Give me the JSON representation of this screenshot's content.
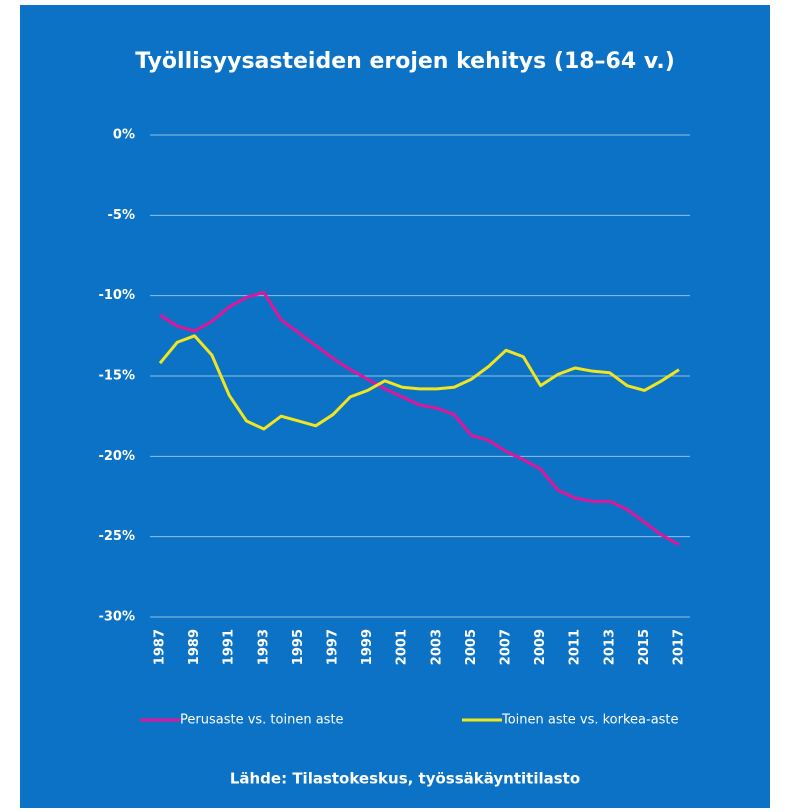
{
  "chart_data": {
    "type": "line",
    "title": "Työllisyysasteiden erojen kehitys (18–64 v.)",
    "source": "Lähde: Tilastokeskus, työssäkäyntitilasto",
    "x": [
      1987,
      1988,
      1989,
      1990,
      1991,
      1992,
      1993,
      1994,
      1995,
      1996,
      1997,
      1998,
      1999,
      2000,
      2001,
      2002,
      2003,
      2004,
      2005,
      2006,
      2007,
      2008,
      2009,
      2010,
      2011,
      2012,
      2013,
      2014,
      2015,
      2016,
      2017
    ],
    "xlim": [
      1987,
      2017
    ],
    "xticks": [
      1987,
      1989,
      1991,
      1993,
      1995,
      1997,
      1999,
      2001,
      2003,
      2005,
      2007,
      2009,
      2011,
      2013,
      2015,
      2017
    ],
    "ylim": [
      -30,
      0
    ],
    "yticks": [
      {
        "value": 0,
        "label": "0%"
      },
      {
        "value": -5,
        "label": "-5%"
      },
      {
        "value": -10,
        "label": "-10%"
      },
      {
        "value": -15,
        "label": "-15%"
      },
      {
        "value": -20,
        "label": "-20%"
      },
      {
        "value": -25,
        "label": "-25%"
      },
      {
        "value": -30,
        "label": "-30%"
      }
    ],
    "grid": true,
    "legend": "bottom",
    "series": [
      {
        "name": "Perusaste vs. toinen aste",
        "color": "#e0169a",
        "values": [
          -11.2,
          -11.9,
          -12.2,
          -11.6,
          -10.7,
          -10.1,
          -9.8,
          -11.5,
          -12.3,
          -13.1,
          -13.9,
          -14.6,
          -15.2,
          -15.8,
          -16.3,
          -16.8,
          -17.0,
          -17.4,
          -18.7,
          -19.0,
          -19.7,
          -20.2,
          -20.8,
          -22.1,
          -22.6,
          -22.8,
          -22.8,
          -23.3,
          -24.1,
          -24.9,
          -25.5
        ]
      },
      {
        "name": "Toinen aste vs. korkea-aste",
        "color": "#f0e520",
        "values": [
          -14.2,
          -12.9,
          -12.5,
          -13.7,
          -16.2,
          -17.8,
          -18.3,
          -17.5,
          -17.8,
          -18.1,
          -17.4,
          -16.3,
          -15.9,
          -15.3,
          -15.7,
          -15.8,
          -15.8,
          -15.7,
          -15.2,
          -14.4,
          -13.4,
          -13.8,
          -15.6,
          -14.9,
          -14.5,
          -14.7,
          -14.8,
          -15.6,
          -15.9,
          -15.3,
          -14.6
        ]
      }
    ]
  }
}
